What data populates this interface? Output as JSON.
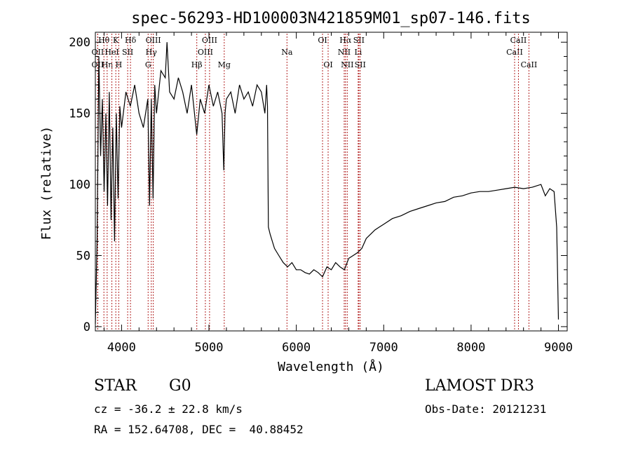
{
  "chart_data": {
    "type": "line",
    "title": "spec-56293-HD100003N421859M01_sp07-146.fits",
    "xlabel": "Wavelength (Å)",
    "ylabel": "Flux (relative)",
    "xlim": [
      3700,
      9100
    ],
    "ylim": [
      -3,
      207
    ],
    "x_ticks": [
      4000,
      5000,
      6000,
      7000,
      8000,
      9000
    ],
    "y_ticks": [
      0,
      50,
      100,
      150,
      200
    ],
    "grid": false,
    "series": [
      {
        "x": [
          3700,
          3720,
          3740,
          3760,
          3780,
          3800,
          3820,
          3840,
          3860,
          3880,
          3900,
          3920,
          3940,
          3960,
          3980,
          4000,
          4050,
          4100,
          4150,
          4200,
          4250,
          4300,
          4320,
          4340,
          4360,
          4380,
          4400,
          4450,
          4500,
          4520,
          4550,
          4600,
          4650,
          4700,
          4750,
          4800,
          4860,
          4900,
          4950,
          5000,
          5050,
          5100,
          5150,
          5170,
          5184,
          5200,
          5250,
          5300,
          5350,
          5400,
          5450,
          5500,
          5550,
          5600,
          5640,
          5660,
          5670,
          5680,
          5700,
          5750,
          5800,
          5850,
          5900,
          5950,
          6000,
          6050,
          6100,
          6150,
          6200,
          6250,
          6300,
          6350,
          6400,
          6450,
          6500,
          6550,
          6600,
          6650,
          6700,
          6750,
          6800,
          6850,
          6900,
          6950,
          7000,
          7100,
          7200,
          7300,
          7400,
          7500,
          7600,
          7700,
          7800,
          7900,
          8000,
          8100,
          8200,
          8300,
          8400,
          8500,
          8600,
          8700,
          8800,
          8850,
          8900,
          8950,
          8980,
          9000
        ],
        "y": [
          2,
          60,
          190,
          120,
          160,
          95,
          150,
          85,
          165,
          75,
          140,
          60,
          150,
          90,
          155,
          140,
          165,
          155,
          170,
          150,
          140,
          160,
          85,
          160,
          90,
          170,
          150,
          180,
          175,
          200,
          165,
          160,
          175,
          165,
          150,
          170,
          135,
          160,
          150,
          170,
          155,
          165,
          150,
          110,
          150,
          160,
          165,
          150,
          170,
          160,
          165,
          155,
          170,
          165,
          150,
          170,
          155,
          70,
          65,
          55,
          50,
          45,
          42,
          45,
          40,
          40,
          38,
          37,
          40,
          38,
          35,
          42,
          40,
          45,
          42,
          40,
          48,
          50,
          52,
          55,
          62,
          65,
          68,
          70,
          72,
          76,
          78,
          81,
          83,
          85,
          87,
          88,
          91,
          92,
          94,
          95,
          95,
          96,
          97,
          98,
          97,
          98,
          100,
          92,
          97,
          95,
          70,
          5
        ]
      }
    ],
    "line_markers": [
      {
        "label": "Hθ",
        "x": 3798,
        "row": 1
      },
      {
        "label": "OII",
        "x": 3727,
        "row": 2
      },
      {
        "label": "OII",
        "x": 3727,
        "row": 3
      },
      {
        "label": "Hη",
        "x": 3835,
        "row": 3
      },
      {
        "label": "HeI",
        "x": 3889,
        "row": 2
      },
      {
        "label": "K",
        "x": 3934,
        "row": 1
      },
      {
        "label": "H",
        "x": 3968,
        "row": 3
      },
      {
        "label": "SII",
        "x": 4070,
        "row": 2
      },
      {
        "label": "Hδ",
        "x": 4102,
        "row": 1
      },
      {
        "label": "G",
        "x": 4304,
        "row": 3
      },
      {
        "label": "Hγ",
        "x": 4340,
        "row": 2
      },
      {
        "label": "OIII",
        "x": 4363,
        "row": 1
      },
      {
        "label": "Hβ",
        "x": 4861,
        "row": 3
      },
      {
        "label": "OIII",
        "x": 4959,
        "row": 2
      },
      {
        "label": "OIII",
        "x": 5007,
        "row": 1
      },
      {
        "label": "Mg",
        "x": 5175,
        "row": 3
      },
      {
        "label": "Na",
        "x": 5893,
        "row": 2
      },
      {
        "label": "OI",
        "x": 6300,
        "row": 1
      },
      {
        "label": "OI",
        "x": 6364,
        "row": 3
      },
      {
        "label": "NII",
        "x": 6548,
        "row": 2
      },
      {
        "label": "Hα",
        "x": 6563,
        "row": 1
      },
      {
        "label": "NII",
        "x": 6583,
        "row": 3
      },
      {
        "label": "Li",
        "x": 6708,
        "row": 2
      },
      {
        "label": "SII",
        "x": 6716,
        "row": 1
      },
      {
        "label": "SII",
        "x": 6731,
        "row": 3
      },
      {
        "label": "CaII",
        "x": 8498,
        "row": 2
      },
      {
        "label": "CaII",
        "x": 8542,
        "row": 1
      },
      {
        "label": "CaII",
        "x": 8662,
        "row": 3
      }
    ]
  },
  "info": {
    "class_label": "STAR",
    "subclass": "G0",
    "survey": "LAMOST DR3",
    "cz": "cz = -36.2 ± 22.8 km/s",
    "obs_date": "Obs-Date: 20121231",
    "radec": "RA = 152.64708, DEC =  40.88452"
  }
}
